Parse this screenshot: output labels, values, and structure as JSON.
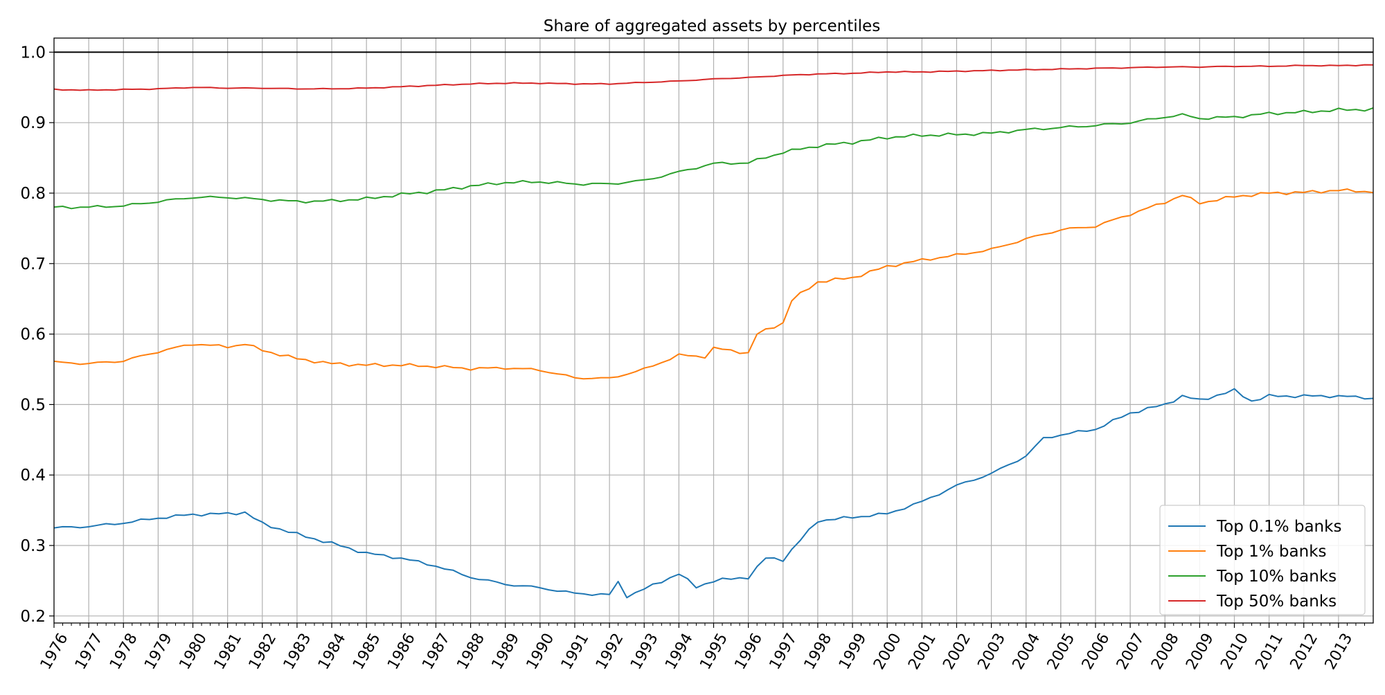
{
  "chart_data": {
    "type": "line",
    "title": "Share of aggregated assets by percentiles",
    "xlabel": "",
    "ylabel": "",
    "x_start_year": 1976,
    "x_end_year": 2014,
    "x_ticks": [
      "1976",
      "1977",
      "1978",
      "1979",
      "1980",
      "1981",
      "1982",
      "1983",
      "1984",
      "1985",
      "1986",
      "1987",
      "1988",
      "1989",
      "1990",
      "1991",
      "1992",
      "1993",
      "1994",
      "1995",
      "1996",
      "1997",
      "1998",
      "1999",
      "2000",
      "2001",
      "2002",
      "2003",
      "2004",
      "2005",
      "2006",
      "2007",
      "2008",
      "2009",
      "2010",
      "2011",
      "2012",
      "2013"
    ],
    "y_ticks": [
      "0.2",
      "0.3",
      "0.4",
      "0.5",
      "0.6",
      "0.7",
      "0.8",
      "0.9",
      "1.0"
    ],
    "ylim": [
      0.19,
      1.02
    ],
    "grid": true,
    "reference_line": 1.0,
    "legend_position": "lower-right",
    "series": [
      {
        "name": "Top 0.1% banks",
        "color": "#1f77b4",
        "knots": [
          [
            1976,
            0.325
          ],
          [
            1977,
            0.327
          ],
          [
            1978,
            0.332
          ],
          [
            1979,
            0.339
          ],
          [
            1980,
            0.344
          ],
          [
            1981,
            0.345
          ],
          [
            1981.5,
            0.347
          ],
          [
            1982,
            0.331
          ],
          [
            1983,
            0.316
          ],
          [
            1984,
            0.303
          ],
          [
            1985,
            0.289
          ],
          [
            1986,
            0.282
          ],
          [
            1987,
            0.271
          ],
          [
            1988,
            0.255
          ],
          [
            1989,
            0.245
          ],
          [
            1990,
            0.24
          ],
          [
            1991,
            0.232
          ],
          [
            1992,
            0.23
          ],
          [
            1992.25,
            0.248
          ],
          [
            1992.5,
            0.228
          ],
          [
            1993,
            0.238
          ],
          [
            1994,
            0.26
          ],
          [
            1994.5,
            0.241
          ],
          [
            1995,
            0.25
          ],
          [
            1996,
            0.255
          ],
          [
            1996.5,
            0.282
          ],
          [
            1997,
            0.28
          ],
          [
            1998,
            0.335
          ],
          [
            1999,
            0.34
          ],
          [
            2000,
            0.345
          ],
          [
            2001,
            0.362
          ],
          [
            2002,
            0.385
          ],
          [
            2003,
            0.402
          ],
          [
            2004,
            0.427
          ],
          [
            2004.5,
            0.452
          ],
          [
            2005,
            0.457
          ],
          [
            2006,
            0.465
          ],
          [
            2007,
            0.488
          ],
          [
            2008,
            0.5
          ],
          [
            2008.5,
            0.512
          ],
          [
            2009,
            0.506
          ],
          [
            2010,
            0.52
          ],
          [
            2010.5,
            0.505
          ],
          [
            2011,
            0.512
          ],
          [
            2012,
            0.512
          ],
          [
            2013,
            0.512
          ],
          [
            2014,
            0.509
          ]
        ]
      },
      {
        "name": "Top 1% banks",
        "color": "#ff7f0e",
        "knots": [
          [
            1976,
            0.56
          ],
          [
            1977,
            0.558
          ],
          [
            1978,
            0.562
          ],
          [
            1979,
            0.575
          ],
          [
            1980,
            0.586
          ],
          [
            1981,
            0.582
          ],
          [
            1981.5,
            0.586
          ],
          [
            1982,
            0.577
          ],
          [
            1983,
            0.565
          ],
          [
            1984,
            0.558
          ],
          [
            1985,
            0.556
          ],
          [
            1986,
            0.556
          ],
          [
            1987,
            0.554
          ],
          [
            1988,
            0.551
          ],
          [
            1989,
            0.552
          ],
          [
            1990,
            0.549
          ],
          [
            1991,
            0.538
          ],
          [
            1992,
            0.537
          ],
          [
            1993,
            0.55
          ],
          [
            1994,
            0.57
          ],
          [
            1994.75,
            0.568
          ],
          [
            1995,
            0.58
          ],
          [
            1996,
            0.573
          ],
          [
            1996.25,
            0.6
          ],
          [
            1997,
            0.616
          ],
          [
            1997.25,
            0.648
          ],
          [
            1998,
            0.674
          ],
          [
            1999,
            0.68
          ],
          [
            2000,
            0.696
          ],
          [
            2001,
            0.705
          ],
          [
            2002,
            0.712
          ],
          [
            2003,
            0.72
          ],
          [
            2004,
            0.735
          ],
          [
            2005,
            0.748
          ],
          [
            2006,
            0.753
          ],
          [
            2007,
            0.77
          ],
          [
            2008,
            0.787
          ],
          [
            2008.5,
            0.797
          ],
          [
            2009,
            0.786
          ],
          [
            2010,
            0.795
          ],
          [
            2011,
            0.8
          ],
          [
            2012,
            0.801
          ],
          [
            2013,
            0.804
          ],
          [
            2014,
            0.802
          ]
        ]
      },
      {
        "name": "Top 10% banks",
        "color": "#2ca02c",
        "knots": [
          [
            1976,
            0.78
          ],
          [
            1977,
            0.78
          ],
          [
            1978,
            0.782
          ],
          [
            1979,
            0.788
          ],
          [
            1980,
            0.794
          ],
          [
            1981,
            0.794
          ],
          [
            1982,
            0.791
          ],
          [
            1983,
            0.788
          ],
          [
            1984,
            0.789
          ],
          [
            1985,
            0.792
          ],
          [
            1986,
            0.798
          ],
          [
            1987,
            0.803
          ],
          [
            1988,
            0.81
          ],
          [
            1989,
            0.815
          ],
          [
            1990,
            0.816
          ],
          [
            1991,
            0.813
          ],
          [
            1992,
            0.813
          ],
          [
            1993,
            0.818
          ],
          [
            1994,
            0.83
          ],
          [
            1995,
            0.842
          ],
          [
            1996,
            0.843
          ],
          [
            1997,
            0.858
          ],
          [
            1998,
            0.867
          ],
          [
            1999,
            0.872
          ],
          [
            2000,
            0.879
          ],
          [
            2001,
            0.882
          ],
          [
            2002,
            0.883
          ],
          [
            2003,
            0.885
          ],
          [
            2004,
            0.89
          ],
          [
            2005,
            0.893
          ],
          [
            2006,
            0.896
          ],
          [
            2007,
            0.9
          ],
          [
            2008,
            0.908
          ],
          [
            2008.5,
            0.911
          ],
          [
            2009,
            0.906
          ],
          [
            2010,
            0.908
          ],
          [
            2011,
            0.913
          ],
          [
            2012,
            0.915
          ],
          [
            2013,
            0.918
          ],
          [
            2014,
            0.919
          ]
        ]
      },
      {
        "name": "Top 50% banks",
        "color": "#d62728",
        "knots": [
          [
            1976,
            0.947
          ],
          [
            1977,
            0.946
          ],
          [
            1978,
            0.947
          ],
          [
            1979,
            0.948
          ],
          [
            1980,
            0.95
          ],
          [
            1981,
            0.949
          ],
          [
            1982,
            0.949
          ],
          [
            1983,
            0.948
          ],
          [
            1984,
            0.948
          ],
          [
            1985,
            0.949
          ],
          [
            1986,
            0.951
          ],
          [
            1987,
            0.953
          ],
          [
            1988,
            0.955
          ],
          [
            1989,
            0.956
          ],
          [
            1990,
            0.956
          ],
          [
            1991,
            0.955
          ],
          [
            1992,
            0.955
          ],
          [
            1993,
            0.957
          ],
          [
            1994,
            0.959
          ],
          [
            1995,
            0.962
          ],
          [
            1996,
            0.964
          ],
          [
            1997,
            0.967
          ],
          [
            1998,
            0.969
          ],
          [
            1999,
            0.97
          ],
          [
            2000,
            0.972
          ],
          [
            2001,
            0.972
          ],
          [
            2002,
            0.973
          ],
          [
            2003,
            0.974
          ],
          [
            2004,
            0.975
          ],
          [
            2005,
            0.976
          ],
          [
            2006,
            0.977
          ],
          [
            2007,
            0.978
          ],
          [
            2008,
            0.979
          ],
          [
            2009,
            0.979
          ],
          [
            2010,
            0.98
          ],
          [
            2011,
            0.98
          ],
          [
            2012,
            0.981
          ],
          [
            2013,
            0.981
          ],
          [
            2014,
            0.982
          ]
        ]
      }
    ]
  }
}
